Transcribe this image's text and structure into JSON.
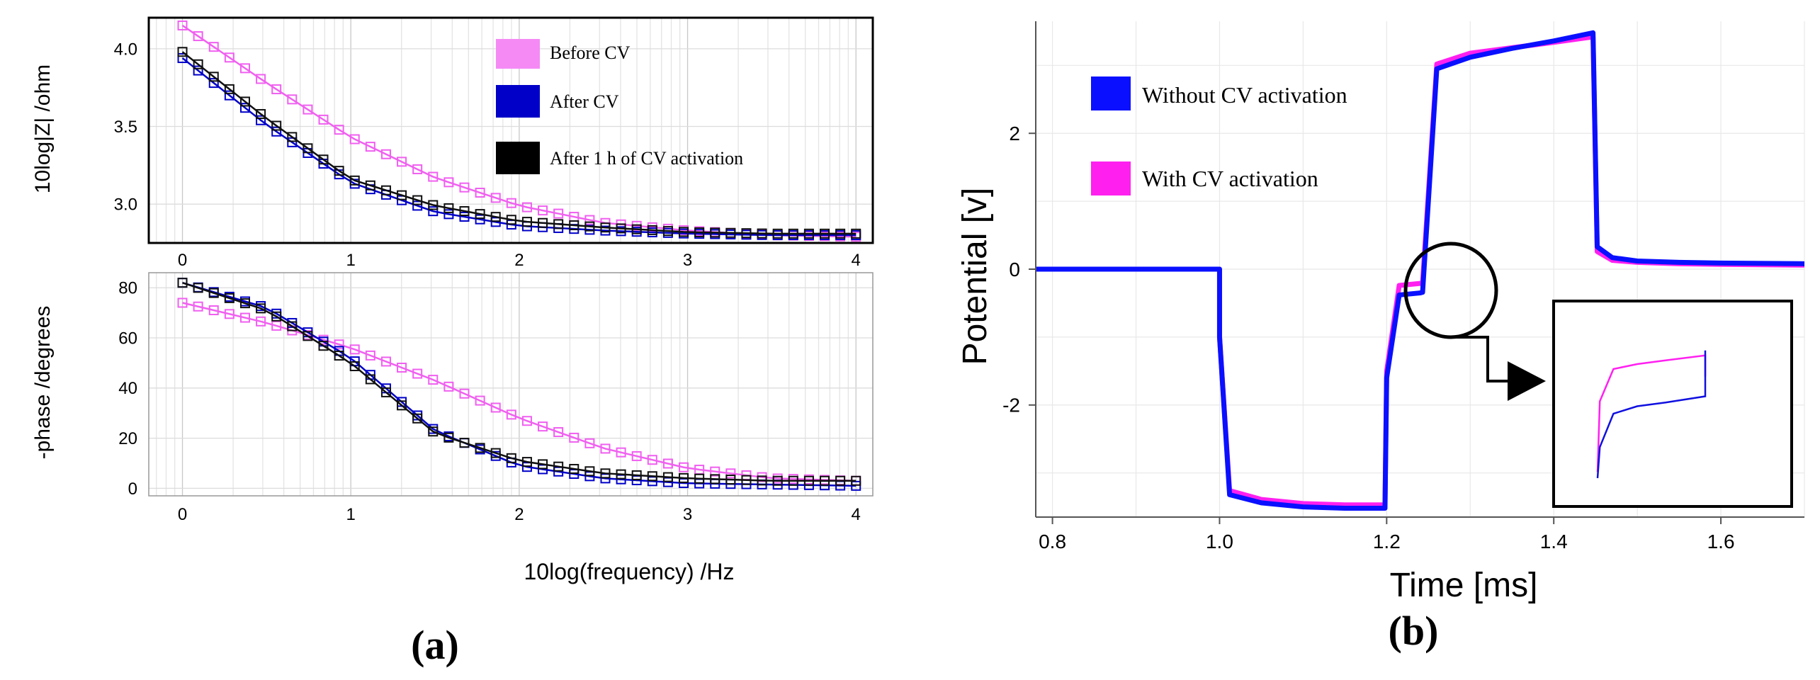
{
  "figure": {
    "panel_a_label": "(a)",
    "panel_b_label": "(b)"
  },
  "chart_data": [
    {
      "id": "a-top",
      "type": "line",
      "title": "",
      "xlabel": "",
      "ylabel": "10log|Z| /ohm",
      "xlim": [
        -0.2,
        4.1
      ],
      "ylim": [
        2.75,
        4.2
      ],
      "xticks": [
        0,
        1,
        2,
        3,
        4
      ],
      "yticks": [
        3.0,
        3.5,
        4.0
      ],
      "ytick_labels": [
        "3.0",
        "3.5",
        "4.0"
      ],
      "grid": true,
      "markers": "square",
      "legend_position": "top-right",
      "series": [
        {
          "name": "Before CV",
          "color": "#f060f0",
          "x": [
            0,
            0.5,
            1,
            1.5,
            2,
            2.5,
            3,
            3.5,
            4
          ],
          "y": [
            4.15,
            3.78,
            3.43,
            3.17,
            2.99,
            2.88,
            2.83,
            2.8,
            2.79
          ]
        },
        {
          "name": "After CV",
          "color": "#0000c8",
          "x": [
            0,
            0.5,
            1,
            1.5,
            2,
            2.5,
            3,
            3.5,
            4
          ],
          "y": [
            3.94,
            3.51,
            3.14,
            2.95,
            2.86,
            2.83,
            2.81,
            2.8,
            2.8
          ]
        },
        {
          "name": "After 1 h of CV activation",
          "color": "#111111",
          "x": [
            0,
            0.5,
            1,
            1.5,
            2,
            2.5,
            3,
            3.5,
            4
          ],
          "y": [
            3.98,
            3.55,
            3.16,
            2.99,
            2.89,
            2.85,
            2.82,
            2.81,
            2.81
          ]
        }
      ]
    },
    {
      "id": "a-bottom",
      "type": "line",
      "title": "",
      "xlabel": "10log(frequency) /Hz",
      "ylabel": "-phase /degrees",
      "xlim": [
        -0.2,
        4.1
      ],
      "ylim": [
        -3,
        86
      ],
      "xticks": [
        0,
        1,
        2,
        3,
        4
      ],
      "yticks": [
        0,
        20,
        40,
        60,
        80
      ],
      "grid": true,
      "markers": "square",
      "series": [
        {
          "name": "Before CV",
          "color": "#f060f0",
          "x": [
            0,
            0.5,
            1,
            1.5,
            2,
            2.5,
            3,
            3.5,
            4
          ],
          "y": [
            74,
            66,
            56,
            43,
            28,
            16,
            8,
            4,
            3
          ]
        },
        {
          "name": "After CV",
          "color": "#0000c8",
          "x": [
            0,
            0.5,
            1,
            1.5,
            2,
            2.5,
            3,
            3.5,
            4
          ],
          "y": [
            82,
            72,
            52,
            23,
            9,
            4,
            2,
            1.5,
            1
          ]
        },
        {
          "name": "After 1 h of CV activation",
          "color": "#111111",
          "x": [
            0,
            0.5,
            1,
            1.5,
            2,
            2.5,
            3,
            3.5,
            4
          ],
          "y": [
            82,
            71,
            50,
            22,
            11,
            6,
            4,
            3,
            3
          ]
        }
      ]
    },
    {
      "id": "b",
      "type": "line",
      "title": "",
      "xlabel": "Time [ms]",
      "ylabel": "Potential [v]",
      "xlim": [
        0.78,
        1.7
      ],
      "ylim": [
        -3.65,
        3.65
      ],
      "xticks": [
        0.8,
        1.0,
        1.2,
        1.4,
        1.6
      ],
      "xtick_labels": [
        "0.8",
        "1.0",
        "1.2",
        "1.4",
        "1.6"
      ],
      "yticks": [
        -2,
        0,
        2
      ],
      "ytick_labels": [
        "-2",
        "0",
        "2"
      ],
      "grid": true,
      "legend_position": "top-left",
      "series": [
        {
          "name": "Without CV activation",
          "color": "#0a10ff",
          "x": [
            0.78,
            1.0,
            1.0,
            1.012,
            1.05,
            1.1,
            1.15,
            1.198,
            1.2,
            1.215,
            1.24,
            1.243,
            1.26,
            1.3,
            1.35,
            1.4,
            1.447,
            1.452,
            1.47,
            1.5,
            1.55,
            1.6,
            1.7
          ],
          "y": [
            0,
            0,
            -1.0,
            -3.32,
            -3.44,
            -3.5,
            -3.52,
            -3.52,
            -1.6,
            -0.38,
            -0.35,
            -0.34,
            2.95,
            3.12,
            3.25,
            3.36,
            3.48,
            0.33,
            0.17,
            0.12,
            0.1,
            0.09,
            0.08
          ]
        },
        {
          "name": "With CV activation",
          "color": "#ff20f0",
          "x": [
            0.78,
            1.0,
            1.0,
            1.012,
            1.05,
            1.1,
            1.15,
            1.198,
            1.2,
            1.215,
            1.24,
            1.243,
            1.26,
            1.3,
            1.35,
            1.4,
            1.447,
            1.452,
            1.47,
            1.5,
            1.55,
            1.6,
            1.7
          ],
          "y": [
            0,
            0,
            -1.0,
            -3.26,
            -3.39,
            -3.45,
            -3.47,
            -3.47,
            -1.5,
            -0.24,
            -0.21,
            -0.2,
            3.02,
            3.18,
            3.26,
            3.34,
            3.42,
            0.26,
            0.13,
            0.1,
            0.08,
            0.07,
            0.06
          ]
        }
      ],
      "inset": {
        "series": [
          {
            "name": "With CV activation",
            "color": "#ff20f0",
            "x": [
              0,
              0.02,
              0.14,
              0.35,
              0.6,
              0.95,
              0.95
            ],
            "y": [
              0.05,
              0.62,
              0.88,
              0.92,
              0.95,
              0.99,
              0.82
            ]
          },
          {
            "name": "Without CV activation",
            "color": "#1010e0",
            "x": [
              0,
              0.02,
              0.14,
              0.35,
              0.6,
              0.95,
              0.95
            ],
            "y": [
              0.0,
              0.25,
              0.52,
              0.58,
              0.61,
              0.66,
              1.03
            ]
          }
        ]
      }
    }
  ]
}
